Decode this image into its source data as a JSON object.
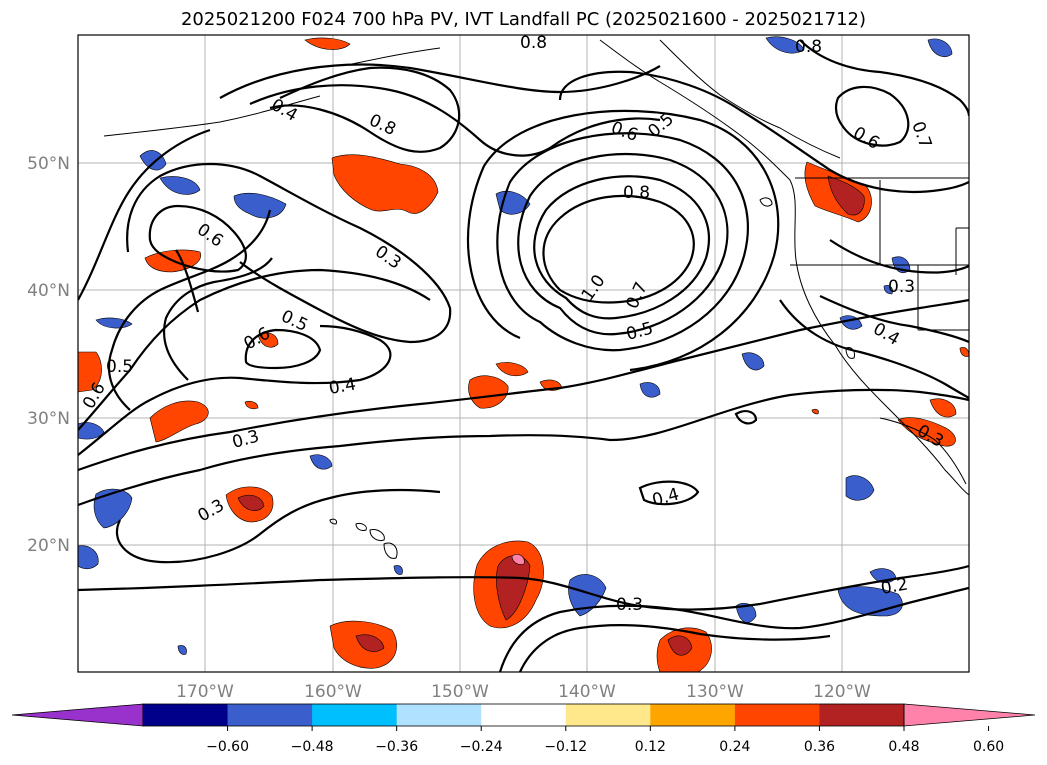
{
  "title": "2025021200 F024 700 hPa PV, IVT Landfall PC (2025021600 - 2025021712)",
  "map": {
    "lat_labels": [
      "50°N",
      "40°N",
      "30°N",
      "20°N"
    ],
    "lon_labels": [
      "170°W",
      "160°W",
      "150°W",
      "140°W",
      "130°W",
      "120°W"
    ],
    "gridlines": true,
    "contour_labels": [
      "0.8",
      "0.8",
      "0.4",
      "0.8",
      "0.6",
      "0.5",
      "0.6",
      "0.7",
      "0.6",
      "0.8",
      "0.3",
      "1.0",
      "0.7",
      "0.5",
      "0.5",
      "0.6",
      "0.4",
      "0.3",
      "0.5",
      "0.6",
      "0.3",
      "0.4",
      "0.3",
      "0.3",
      "0.4",
      "0.3",
      "0.2"
    ]
  },
  "colorbar": {
    "ticks": [
      "−0.60",
      "−0.48",
      "−0.36",
      "−0.24",
      "−0.12",
      "0.12",
      "0.24",
      "0.36",
      "0.48",
      "0.60"
    ],
    "colors": [
      "#9932cc",
      "#00008b",
      "#3a5fcd",
      "#00bfff",
      "#b0e2ff",
      "#ffffff",
      "#ffe88c",
      "#ffa500",
      "#ff4500",
      "#b22222",
      "#ff82ab"
    ]
  }
}
